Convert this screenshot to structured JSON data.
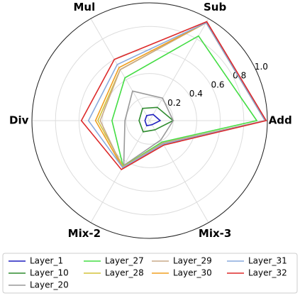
{
  "chart_data": {
    "type": "radar",
    "categories": [
      "Add",
      "Sub",
      "Mul",
      "Div",
      "Mix-2",
      "Mix-3"
    ],
    "rlim": [
      0,
      1
    ],
    "rticks": [
      0.2,
      0.4,
      0.6,
      0.8,
      {
        "value": 1,
        "label": "1.0"
      }
    ],
    "grid": true,
    "legend": "bottom",
    "series": [
      {
        "name": "Layer_1",
        "color": "#1f1fbf",
        "values": [
          0.09,
          0.06,
          0.05,
          0.04,
          0.05,
          0.04
        ]
      },
      {
        "name": "Layer_10",
        "color": "#2e8b2e",
        "values": [
          0.2,
          0.13,
          0.12,
          0.09,
          0.11,
          0.09
        ]
      },
      {
        "name": "Layer_20",
        "color": "#999999",
        "values": [
          0.2,
          0.22,
          0.29,
          0.21,
          0.44,
          0.19
        ]
      },
      {
        "name": "Layer_27",
        "color": "#44dd44",
        "values": [
          0.91,
          0.83,
          0.42,
          0.32,
          0.45,
          0.21
        ]
      },
      {
        "name": "Layer_28",
        "color": "#d4c23a",
        "values": [
          0.98,
          0.96,
          0.5,
          0.44,
          0.45,
          0.22
        ]
      },
      {
        "name": "Layer_29",
        "color": "#c8aa88",
        "values": [
          0.98,
          0.96,
          0.5,
          0.42,
          0.46,
          0.22
        ]
      },
      {
        "name": "Layer_30",
        "color": "#f0a020",
        "values": [
          0.98,
          0.96,
          0.52,
          0.46,
          0.46,
          0.23
        ]
      },
      {
        "name": "Layer_31",
        "color": "#88aadd",
        "values": [
          0.98,
          0.96,
          0.55,
          0.52,
          0.46,
          0.23
        ]
      },
      {
        "name": "Layer_32",
        "color": "#dd2a2a",
        "values": [
          0.99,
          0.97,
          0.6,
          0.58,
          0.48,
          0.24
        ]
      }
    ]
  }
}
